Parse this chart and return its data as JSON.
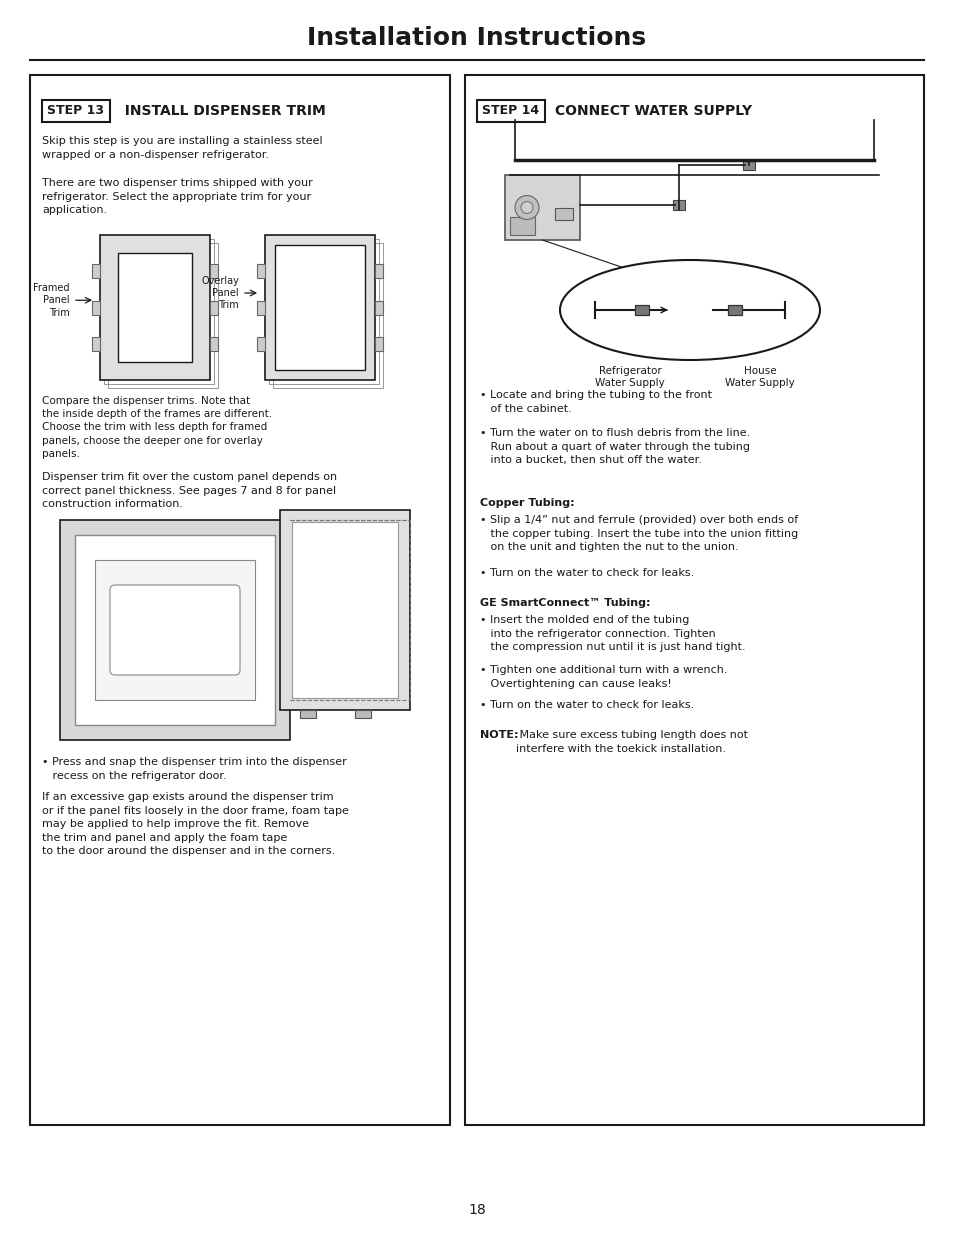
{
  "title": "Installation Instructions",
  "page_number": "18",
  "bg": "#ffffff",
  "ink": "#1a1a1a",
  "step13_box_label": "STEP 13",
  "step13_heading": "  INSTALL DISPENSER TRIM",
  "step13_p1": "Skip this step is you are installing a stainless steel\nwrapped or a non-dispenser refrigerator.",
  "step13_p2": "There are two dispenser trims shipped with your\nrefrigerator. Select the appropriate trim for your\napplication.",
  "step13_label_left": "Framed\nPanel\nTrim",
  "step13_label_right": "Overlay\nPanel\nTrim",
  "step13_caption": "Compare the dispenser trims. Note that\nthe inside depth of the frames are different.\nChoose the trim with less depth for framed\npanels, choose the deeper one for overlay\npanels.",
  "step13_p3": "Dispenser trim fit over the custom panel depends on\ncorrect panel thickness. See pages 7 and 8 for panel\nconstruction information.",
  "step13_b1": "• Press and snap the dispenser trim into the dispenser\n   recess on the refrigerator door.",
  "step13_p4": "If an excessive gap exists around the dispenser trim\nor if the panel fits loosely in the door frame, foam tape\nmay be applied to help improve the fit. Remove\nthe trim and panel and apply the foam tape\nto the door around the dispenser and in the corners.",
  "step14_box_label": "STEP 14",
  "step14_heading": " CONNECT WATER SUPPLY",
  "step14_b1": "• Locate and bring the tubing to the front\n   of the cabinet.",
  "step14_b2": "• Turn the water on to flush debris from the line.\n   Run about a quart of water through the tubing\n   into a bucket, then shut off the water.",
  "step14_copper_hd": "Copper Tubing:",
  "step14_copper_b1": "• Slip a 1/4” nut and ferrule (provided) over both ends of\n   the copper tubing. Insert the tube into the union fitting\n   on the unit and tighten the nut to the union.",
  "step14_copper_b2": "• Turn on the water to check for leaks.",
  "step14_smart_hd": "GE SmartConnect™ Tubing:",
  "step14_smart_b1": "• Insert the molded end of the tubing\n   into the refrigerator connection. Tighten\n   the compression nut until it is just hand tight.",
  "step14_smart_b2": "• Tighten one additional turn with a wrench.\n   Overtightening can cause leaks!",
  "step14_smart_b3": "• Turn on the water to check for leaks.",
  "step14_note_bold": "NOTE:",
  "step14_note_rest": " Make sure excess tubing length does not\ninterfere with the toekick installation.",
  "lbl_refrig": "Refrigerator\nWater Supply",
  "lbl_house": "House\nWater Supply"
}
